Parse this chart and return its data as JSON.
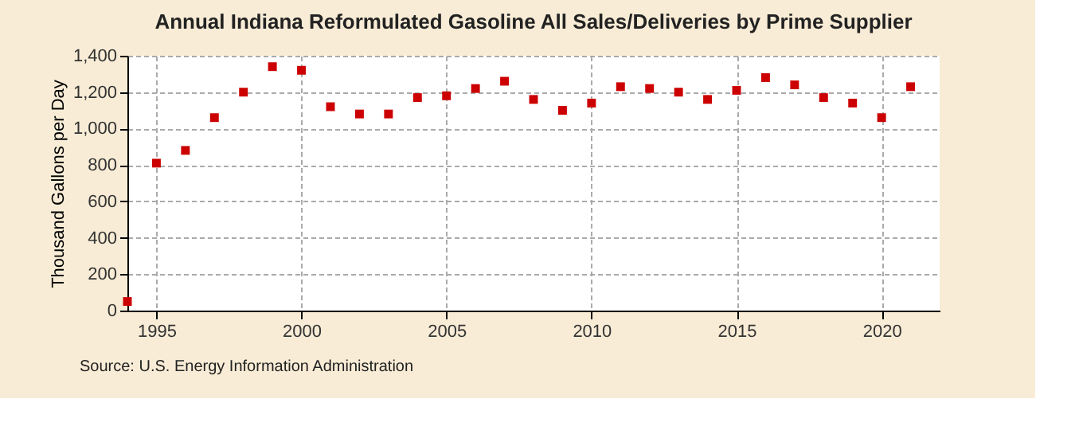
{
  "chart_data": {
    "type": "scatter",
    "title": "Annual Indiana Reformulated Gasoline All Sales/Deliveries by Prime Supplier",
    "ylabel": "Thousand Gallons per Day",
    "x": [
      1994,
      1995,
      1996,
      1997,
      1998,
      1999,
      2000,
      2001,
      2002,
      2003,
      2004,
      2005,
      2006,
      2007,
      2008,
      2009,
      2010,
      2011,
      2012,
      2013,
      2014,
      2015,
      2016,
      2017,
      2018,
      2019,
      2020,
      2021
    ],
    "series": [
      {
        "color": "#cc0000",
        "values": [
          50,
          810,
          880,
          1060,
          1200,
          1340,
          1320,
          1120,
          1080,
          1080,
          1170,
          1180,
          1220,
          1260,
          1160,
          1100,
          1140,
          1230,
          1220,
          1200,
          1160,
          1210,
          1280,
          1240,
          1170,
          1140,
          1060,
          1230
        ]
      }
    ],
    "xlim": [
      1994,
      2022
    ],
    "xticks": [
      1995,
      2000,
      2005,
      2010,
      2015,
      2020
    ],
    "ylim": [
      0,
      1400
    ],
    "yticks": [
      {
        "value": 0,
        "label": "0"
      },
      {
        "value": 200,
        "label": "200"
      },
      {
        "value": 400,
        "label": "400"
      },
      {
        "value": 600,
        "label": "600"
      },
      {
        "value": 800,
        "label": "800"
      },
      {
        "value": 1000,
        "label": "1,000"
      },
      {
        "value": 1200,
        "label": "1,200"
      },
      {
        "value": 1400,
        "label": "1,400"
      }
    ],
    "grid": true,
    "marker": "square",
    "annotations": [
      "Source: U.S. Energy Information Administration"
    ]
  }
}
